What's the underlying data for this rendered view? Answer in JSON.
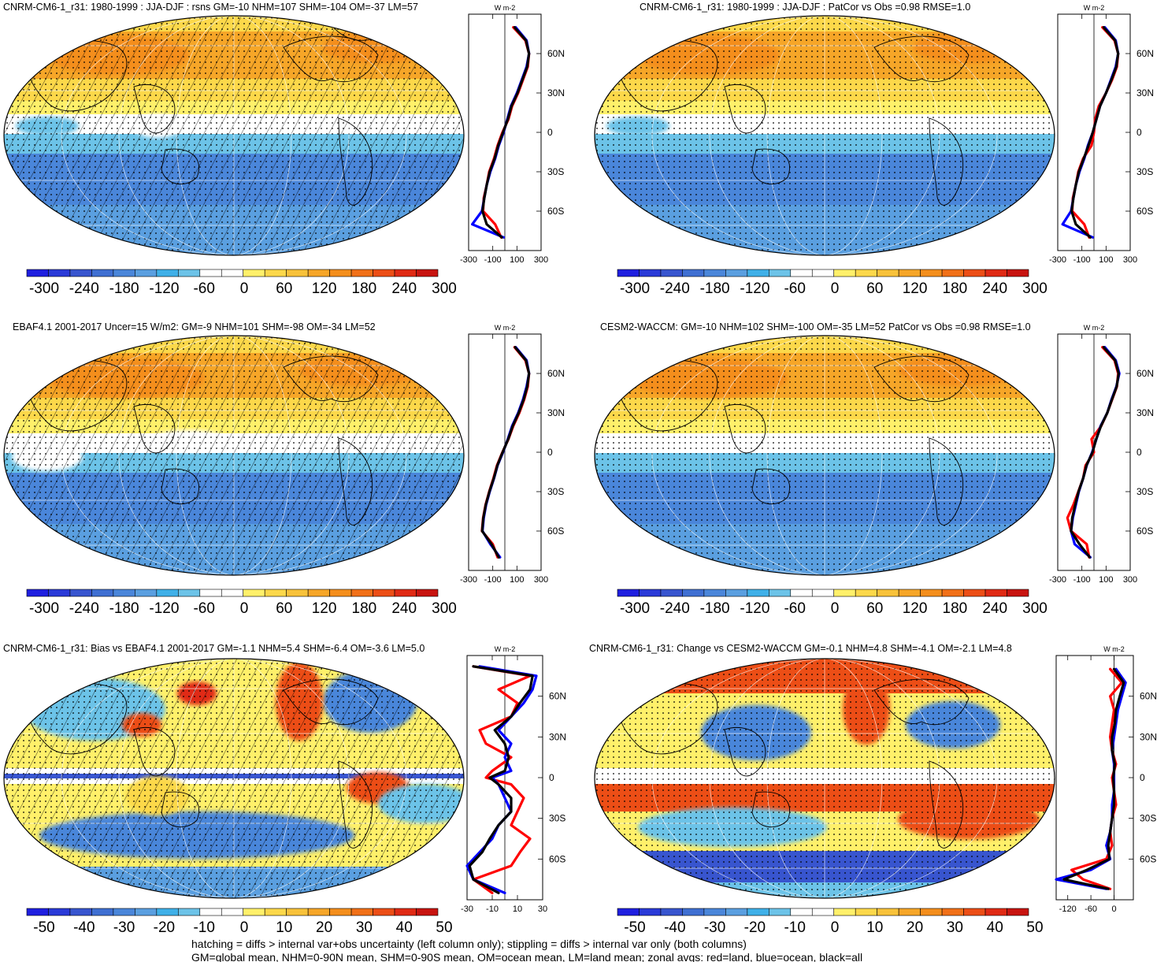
{
  "colors": {
    "scale": [
      "#1f1fe0",
      "#2a3ad8",
      "#3855cf",
      "#3f6fd2",
      "#4a86da",
      "#5a9fe0",
      "#3fb0e8",
      "#6cc3e8",
      "#ffffff",
      "#ffffff",
      "#fff06a",
      "#fcd84a",
      "#f8c23a",
      "#f6a628",
      "#f48e1c",
      "#f17018",
      "#ec4e16",
      "#e02a14",
      "#c81410"
    ],
    "zonal_land": "#ff0000",
    "zonal_ocean": "#0000ff",
    "zonal_all": "#000000"
  },
  "footer": {
    "line1": "hatching = diffs > internal var+obs uncertainty (left column only); stippling = diffs > internal var only (both columns)",
    "line2": "GM=global mean, NHM=0-90N mean, SHM=0-90S mean, OM=ocean mean, LM=land mean; zonal avgs: red=land, blue=ocean, black=all"
  },
  "chart_data": [
    {
      "type": "heatmap",
      "title": "CNRM-CM6-1_r31: 1980-1999 : JJA-DJF : rsns GM=-10 NHM=107 SHM=-104 OM=-37 LM=57",
      "colorbar_labels": [
        "-300",
        "-240",
        "-180",
        "-120",
        "-60",
        "0",
        "60",
        "120",
        "180",
        "240",
        "300"
      ],
      "range": [
        -300,
        300
      ],
      "hatched": true,
      "zonal": {
        "unit": "W m-2",
        "xticks": [
          "-300",
          "-100",
          "100",
          "300"
        ],
        "xlim": [
          -300,
          300
        ],
        "lat_labels": [
          "60N",
          "30N",
          "0",
          "30S",
          "60S"
        ],
        "lat": [
          -80,
          -70,
          -60,
          -50,
          -40,
          -30,
          -20,
          -10,
          0,
          10,
          20,
          30,
          40,
          50,
          60,
          70,
          80
        ],
        "land": [
          -30,
          -80,
          -180,
          -175,
          -150,
          -130,
          -90,
          -60,
          -20,
          30,
          60,
          110,
          150,
          190,
          200,
          170,
          70
        ],
        "ocean": [
          -10,
          -270,
          -190,
          -170,
          -150,
          -120,
          -80,
          -50,
          -10,
          20,
          50,
          100,
          140,
          180,
          200,
          180,
          90
        ],
        "all": [
          -25,
          -150,
          -185,
          -170,
          -150,
          -125,
          -85,
          -55,
          -15,
          25,
          55,
          105,
          145,
          185,
          200,
          175,
          80
        ]
      }
    },
    {
      "type": "heatmap",
      "title": "CNRM-CM6-1_r31: 1980-1999 : JJA-DJF : PatCor vs Obs =0.98 RMSE=1.0",
      "colorbar_labels": [
        "-300",
        "-240",
        "-180",
        "-120",
        "-60",
        "0",
        "60",
        "120",
        "180",
        "240",
        "300"
      ],
      "range": [
        -300,
        300
      ],
      "hatched": false,
      "zonal": {
        "unit": "W m-2",
        "xticks": [
          "-300",
          "-100",
          "100",
          "300"
        ],
        "xlim": [
          -300,
          300
        ],
        "lat_labels": [
          "60N",
          "30N",
          "0",
          "30S",
          "60S"
        ],
        "lat": [
          -80,
          -70,
          -60,
          -50,
          -40,
          -30,
          -20,
          -10,
          0,
          10,
          20,
          30,
          40,
          50,
          60,
          70,
          80
        ],
        "land": [
          -40,
          -80,
          -180,
          -175,
          -150,
          -130,
          -90,
          -20,
          0,
          10,
          40,
          100,
          150,
          190,
          200,
          170,
          70
        ],
        "ocean": [
          -10,
          -260,
          -190,
          -170,
          -150,
          -120,
          -80,
          -50,
          -10,
          20,
          50,
          100,
          140,
          180,
          200,
          180,
          90
        ],
        "all": [
          -30,
          -150,
          -185,
          -170,
          -150,
          -125,
          -85,
          -45,
          -10,
          20,
          50,
          100,
          145,
          185,
          200,
          175,
          80
        ]
      }
    },
    {
      "type": "heatmap",
      "title": "EBAF4.1 2001-2017 Uncer=15 W/m2: GM=-9 NHM=101 SHM=-98 OM=-34 LM=52",
      "colorbar_labels": [
        "-300",
        "-240",
        "-180",
        "-120",
        "-60",
        "0",
        "60",
        "120",
        "180",
        "240",
        "300"
      ],
      "range": [
        -300,
        300
      ],
      "hatched": true,
      "zonal": {
        "unit": "W m-2",
        "xticks": [
          "-300",
          "-100",
          "100",
          "300"
        ],
        "xlim": [
          -300,
          300
        ],
        "lat_labels": [
          "60N",
          "30N",
          "0",
          "30S",
          "60S"
        ],
        "lat": [
          -80,
          -70,
          -60,
          -50,
          -40,
          -30,
          -20,
          -10,
          0,
          10,
          20,
          30,
          40,
          50,
          60,
          70,
          80
        ],
        "land": [
          -60,
          -100,
          -190,
          -180,
          -160,
          -130,
          -95,
          -65,
          -20,
          30,
          70,
          120,
          160,
          190,
          200,
          170,
          80
        ],
        "ocean": [
          -40,
          -120,
          -185,
          -175,
          -155,
          -125,
          -90,
          -60,
          -15,
          25,
          60,
          110,
          150,
          180,
          200,
          180,
          90
        ],
        "all": [
          -50,
          -110,
          -188,
          -178,
          -158,
          -128,
          -92,
          -62,
          -18,
          28,
          65,
          115,
          155,
          185,
          200,
          175,
          85
        ]
      }
    },
    {
      "type": "heatmap",
      "title": "CESM2-WACCM: GM=-10 NHM=102 SHM=-100 OM=-35 LM=52 PatCor vs Obs =0.98 RMSE=1.0",
      "colorbar_labels": [
        "-300",
        "-240",
        "-180",
        "-120",
        "-60",
        "0",
        "60",
        "120",
        "180",
        "240",
        "300"
      ],
      "range": [
        -300,
        300
      ],
      "hatched": false,
      "zonal": {
        "unit": "W m-2",
        "xticks": [
          "-300",
          "-100",
          "100",
          "300"
        ],
        "xlim": [
          -300,
          300
        ],
        "lat_labels": [
          "60N",
          "30N",
          "0",
          "30S",
          "60S"
        ],
        "lat": [
          -80,
          -70,
          -60,
          -50,
          -40,
          -30,
          -20,
          -10,
          0,
          10,
          20,
          30,
          40,
          50,
          60,
          70,
          80
        ],
        "land": [
          -40,
          -60,
          -190,
          -220,
          -170,
          -130,
          -90,
          -70,
          0,
          -20,
          60,
          110,
          150,
          190,
          200,
          170,
          70
        ],
        "ocean": [
          -30,
          -160,
          -190,
          -175,
          -150,
          -125,
          -90,
          -60,
          -15,
          20,
          55,
          110,
          145,
          185,
          210,
          180,
          90
        ],
        "all": [
          -35,
          -120,
          -190,
          -180,
          -155,
          -128,
          -90,
          -62,
          -12,
          18,
          58,
          110,
          148,
          188,
          205,
          175,
          80
        ]
      }
    },
    {
      "type": "heatmap",
      "title": "CNRM-CM6-1_r31: Bias vs EBAF4.1 2001-2017 GM=-1.1 NHM=5.4 SHM=-6.4 OM=-3.6 LM=5.0",
      "colorbar_labels": [
        "-50",
        "-40",
        "-30",
        "-20",
        "-10",
        "0",
        "10",
        "20",
        "30",
        "40",
        "50"
      ],
      "range": [
        -50,
        50
      ],
      "hatched": true,
      "zonal": {
        "unit": "W m-2",
        "xticks": [
          "-30",
          "-10",
          "10",
          "30"
        ],
        "xlim": [
          -30,
          30
        ],
        "lat_labels": [
          "60N",
          "30N",
          "0",
          "30S",
          "60S"
        ],
        "lat": [
          -85,
          -75,
          -65,
          -55,
          -45,
          -35,
          -25,
          -15,
          -5,
          0,
          5,
          15,
          25,
          35,
          45,
          55,
          65,
          75,
          82
        ],
        "land": [
          -10,
          -25,
          5,
          12,
          20,
          5,
          10,
          15,
          5,
          -15,
          -10,
          5,
          -15,
          -20,
          5,
          10,
          -5,
          20,
          -25
        ],
        "ocean": [
          0,
          -25,
          -30,
          -20,
          -10,
          -5,
          5,
          0,
          -5,
          -10,
          5,
          0,
          5,
          -5,
          5,
          15,
          22,
          25,
          -20
        ],
        "all": [
          -5,
          -25,
          -28,
          -18,
          -12,
          -5,
          5,
          5,
          -5,
          -12,
          0,
          3,
          0,
          -8,
          5,
          12,
          20,
          22,
          -25
        ]
      }
    },
    {
      "type": "heatmap",
      "title": "CNRM-CM6-1_r31: Change vs CESM2-WACCM GM=-0.1 NHM=4.8 SHM=-4.1 OM=-2.1 LM=4.8",
      "colorbar_labels": [
        "-50",
        "-40",
        "-30",
        "-20",
        "-10",
        "0",
        "10",
        "20",
        "30",
        "40",
        "50"
      ],
      "range": [
        -50,
        50
      ],
      "hatched": false,
      "zonal": {
        "unit": "W m-2",
        "xticks": [
          "-120",
          "-60",
          "0"
        ],
        "xlim": [
          -150,
          50
        ],
        "lat_labels": [
          "60N",
          "30N",
          "0",
          "30S",
          "60S"
        ],
        "lat": [
          -82,
          -75,
          -68,
          -60,
          -50,
          -40,
          -30,
          -20,
          -10,
          0,
          10,
          20,
          30,
          40,
          50,
          60,
          70,
          80
        ],
        "land": [
          -10,
          -80,
          -110,
          -20,
          -5,
          -10,
          -5,
          5,
          0,
          -5,
          5,
          -5,
          -10,
          -5,
          0,
          -10,
          20,
          -10
        ],
        "ocean": [
          -20,
          -150,
          -60,
          -10,
          -20,
          -10,
          -5,
          -5,
          0,
          0,
          0,
          -5,
          0,
          5,
          10,
          20,
          30,
          5
        ],
        "all": [
          -15,
          -130,
          -70,
          -12,
          -15,
          -10,
          -5,
          0,
          0,
          -2,
          2,
          -5,
          -5,
          2,
          5,
          15,
          25,
          0
        ]
      }
    }
  ]
}
